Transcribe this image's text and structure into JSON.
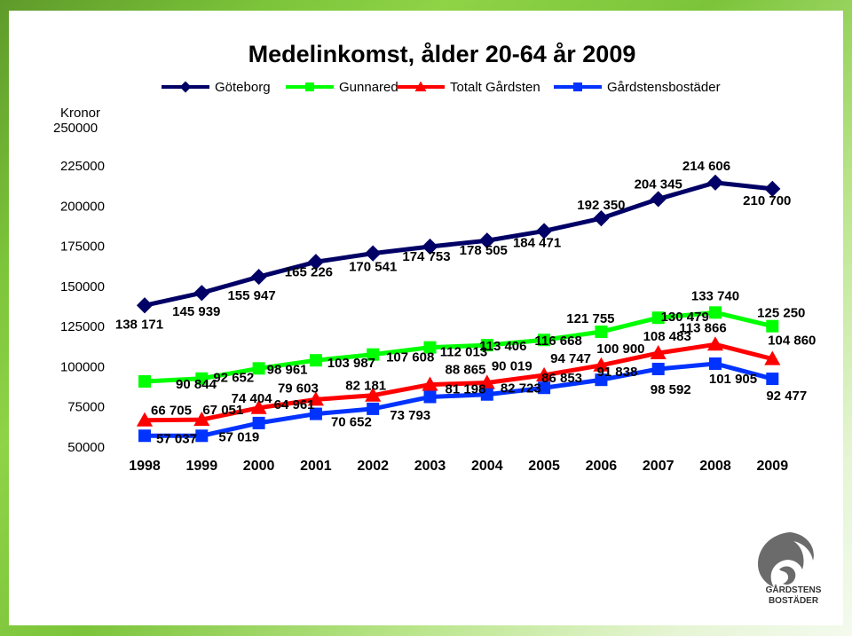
{
  "chart_data": {
    "type": "line",
    "title": "Medelinkomst, ålder 20-64 år 2009",
    "ylabel_line1": "Kronor",
    "ylabel_line2": "250000",
    "x": [
      "1998",
      "1999",
      "2000",
      "2001",
      "2002",
      "2003",
      "2004",
      "2005",
      "2006",
      "2007",
      "2008",
      "2009"
    ],
    "yticks": [
      "225000",
      "200000",
      "175000",
      "150000",
      "125000",
      "100000",
      "75000",
      "50000"
    ],
    "ylim": [
      50000,
      225000
    ],
    "legend_position": "top",
    "series": [
      {
        "name": "Göteborg",
        "color": "#000066",
        "marker": "diamond",
        "values": [
          138171,
          145939,
          155947,
          165226,
          170541,
          174753,
          178505,
          184471,
          192350,
          204345,
          214606,
          210700
        ],
        "labels": [
          "138 171",
          "145 939",
          "155 947",
          "165 226",
          "170 541",
          "174 753",
          "178 505",
          "184 471",
          "192 350",
          "204 345",
          "214 606",
          "210 700"
        ]
      },
      {
        "name": "Gunnared",
        "color": "#00ff00",
        "marker": "square",
        "values": [
          90844,
          92652,
          98961,
          103987,
          107608,
          112013,
          113406,
          116668,
          121755,
          130479,
          133740,
          125250
        ],
        "labels": [
          "90 844",
          "92 652",
          "98 961",
          "103 987",
          "107 608",
          "112 013",
          "113 406",
          "116 668",
          "121 755",
          "130 479",
          "133 740",
          "125 250"
        ]
      },
      {
        "name": "Totalt Gårdsten",
        "color": "#ff0000",
        "marker": "triangle",
        "values": [
          66705,
          67051,
          74404,
          79603,
          82181,
          88865,
          90019,
          94747,
          100900,
          108483,
          113866,
          104860
        ],
        "labels": [
          "66 705",
          "67 051",
          "74 404",
          "79 603",
          "82 181",
          "88 865",
          "90 019",
          "94 747",
          "100 900",
          "108 483",
          "113 866",
          "104 860"
        ]
      },
      {
        "name": "Gårdstensbostäder",
        "color": "#0033ff",
        "marker": "square",
        "values": [
          57037,
          57019,
          64961,
          70652,
          73793,
          81198,
          82723,
          86853,
          91838,
          98592,
          101905,
          92477
        ],
        "labels": [
          "57 037",
          "57 019",
          "64 961",
          "70 652",
          "73 793",
          "81 198",
          "82 723",
          "86 853",
          "91 838",
          "98 592",
          "101 905",
          "92 477"
        ]
      }
    ]
  },
  "logo": {
    "line1": "GÅRDSTENS",
    "line2": "BOSTÄDER",
    "color": "#444444"
  }
}
